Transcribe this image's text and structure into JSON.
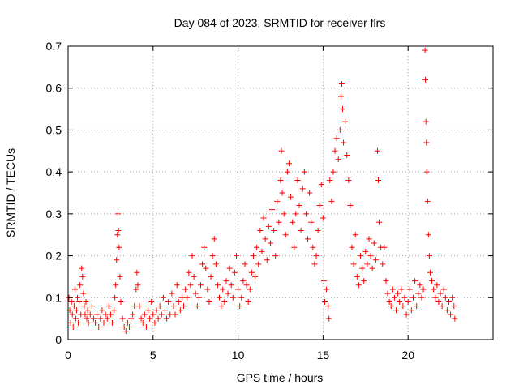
{
  "chart_data": {
    "type": "scatter",
    "title": "Day 084 of 2023, SRMTID for receiver flrs",
    "xlabel": "GPS time / hours",
    "ylabel": "SRMTID / TECUs",
    "xlim": [
      0,
      25
    ],
    "ylim": [
      0,
      0.7
    ],
    "x_ticks": [
      0,
      5,
      10,
      15,
      20
    ],
    "x_tick_labels": [
      "0",
      "5",
      "10",
      "15",
      "20"
    ],
    "y_ticks": [
      0,
      0.1,
      0.2,
      0.3,
      0.4,
      0.5,
      0.6,
      0.7
    ],
    "y_tick_labels": [
      "0",
      "0.1",
      "0.2",
      "0.3",
      "0.4",
      "0.5",
      "0.6",
      "0.7"
    ],
    "grid": true,
    "marker": "+",
    "series": [
      {
        "name": "flrs",
        "color": "#ff0000",
        "points": [
          [
            0.05,
            0.1
          ],
          [
            0.1,
            0.07
          ],
          [
            0.15,
            0.04
          ],
          [
            0.2,
            0.09
          ],
          [
            0.25,
            0.06
          ],
          [
            0.3,
            0.03
          ],
          [
            0.35,
            0.08
          ],
          [
            0.4,
            0.12
          ],
          [
            0.45,
            0.05
          ],
          [
            0.5,
            0.07
          ],
          [
            0.55,
            0.1
          ],
          [
            0.6,
            0.04
          ],
          [
            0.65,
            0.09
          ],
          [
            0.7,
            0.13
          ],
          [
            0.75,
            0.06
          ],
          [
            0.8,
            0.17
          ],
          [
            0.85,
            0.15
          ],
          [
            0.9,
            0.11
          ],
          [
            0.95,
            0.08
          ],
          [
            1.0,
            0.06
          ],
          [
            1.05,
            0.09
          ],
          [
            1.1,
            0.05
          ],
          [
            1.15,
            0.07
          ],
          [
            1.2,
            0.04
          ],
          [
            1.3,
            0.06
          ],
          [
            1.4,
            0.08
          ],
          [
            1.5,
            0.05
          ],
          [
            1.6,
            0.04
          ],
          [
            1.7,
            0.06
          ],
          [
            1.8,
            0.03
          ],
          [
            1.9,
            0.05
          ],
          [
            2.0,
            0.07
          ],
          [
            2.1,
            0.04
          ],
          [
            2.2,
            0.06
          ],
          [
            2.3,
            0.05
          ],
          [
            2.4,
            0.08
          ],
          [
            2.5,
            0.06
          ],
          [
            2.6,
            0.04
          ],
          [
            2.7,
            0.07
          ],
          [
            2.75,
            0.1
          ],
          [
            2.8,
            0.13
          ],
          [
            2.85,
            0.19
          ],
          [
            2.9,
            0.25
          ],
          [
            2.93,
            0.3
          ],
          [
            2.96,
            0.26
          ],
          [
            3.0,
            0.22
          ],
          [
            3.05,
            0.15
          ],
          [
            3.1,
            0.09
          ],
          [
            3.2,
            0.05
          ],
          [
            3.3,
            0.03
          ],
          [
            3.4,
            0.02
          ],
          [
            3.5,
            0.04
          ],
          [
            3.6,
            0.03
          ],
          [
            3.7,
            0.05
          ],
          [
            3.8,
            0.06
          ],
          [
            3.9,
            0.08
          ],
          [
            4.0,
            0.12
          ],
          [
            4.05,
            0.16
          ],
          [
            4.1,
            0.13
          ],
          [
            4.2,
            0.08
          ],
          [
            4.3,
            0.05
          ],
          [
            4.4,
            0.04
          ],
          [
            4.5,
            0.06
          ],
          [
            4.6,
            0.03
          ],
          [
            4.7,
            0.07
          ],
          [
            4.8,
            0.05
          ],
          [
            4.9,
            0.09
          ],
          [
            5.0,
            0.06
          ],
          [
            5.1,
            0.04
          ],
          [
            5.2,
            0.07
          ],
          [
            5.3,
            0.05
          ],
          [
            5.4,
            0.08
          ],
          [
            5.5,
            0.06
          ],
          [
            5.6,
            0.1
          ],
          [
            5.7,
            0.07
          ],
          [
            5.8,
            0.05
          ],
          [
            5.9,
            0.09
          ],
          [
            6.0,
            0.06
          ],
          [
            6.1,
            0.11
          ],
          [
            6.2,
            0.08
          ],
          [
            6.3,
            0.06
          ],
          [
            6.4,
            0.13
          ],
          [
            6.5,
            0.09
          ],
          [
            6.6,
            0.07
          ],
          [
            6.7,
            0.1
          ],
          [
            6.8,
            0.08
          ],
          [
            6.9,
            0.12
          ],
          [
            7.0,
            0.1
          ],
          [
            7.1,
            0.16
          ],
          [
            7.2,
            0.13
          ],
          [
            7.3,
            0.2
          ],
          [
            7.4,
            0.15
          ],
          [
            7.5,
            0.11
          ],
          [
            7.6,
            0.08
          ],
          [
            7.7,
            0.1
          ],
          [
            7.8,
            0.13
          ],
          [
            7.9,
            0.18
          ],
          [
            8.0,
            0.22
          ],
          [
            8.1,
            0.17
          ],
          [
            8.2,
            0.12
          ],
          [
            8.3,
            0.09
          ],
          [
            8.4,
            0.15
          ],
          [
            8.5,
            0.2
          ],
          [
            8.6,
            0.24
          ],
          [
            8.7,
            0.18
          ],
          [
            8.8,
            0.13
          ],
          [
            8.9,
            0.1
          ],
          [
            9.0,
            0.08
          ],
          [
            9.1,
            0.12
          ],
          [
            9.2,
            0.09
          ],
          [
            9.3,
            0.14
          ],
          [
            9.4,
            0.11
          ],
          [
            9.5,
            0.17
          ],
          [
            9.6,
            0.13
          ],
          [
            9.7,
            0.1
          ],
          [
            9.8,
            0.16
          ],
          [
            9.9,
            0.2
          ],
          [
            10.0,
            0.12
          ],
          [
            10.1,
            0.08
          ],
          [
            10.2,
            0.1
          ],
          [
            10.3,
            0.14
          ],
          [
            10.4,
            0.18
          ],
          [
            10.5,
            0.13
          ],
          [
            10.6,
            0.09
          ],
          [
            10.7,
            0.12
          ],
          [
            10.8,
            0.16
          ],
          [
            10.9,
            0.2
          ],
          [
            11.0,
            0.15
          ],
          [
            11.1,
            0.22
          ],
          [
            11.2,
            0.18
          ],
          [
            11.3,
            0.26
          ],
          [
            11.4,
            0.21
          ],
          [
            11.5,
            0.29
          ],
          [
            11.6,
            0.24
          ],
          [
            11.7,
            0.19
          ],
          [
            11.8,
            0.27
          ],
          [
            11.9,
            0.23
          ],
          [
            12.0,
            0.31
          ],
          [
            12.1,
            0.26
          ],
          [
            12.2,
            0.2
          ],
          [
            12.3,
            0.33
          ],
          [
            12.4,
            0.28
          ],
          [
            12.5,
            0.38
          ],
          [
            12.55,
            0.45
          ],
          [
            12.6,
            0.35
          ],
          [
            12.7,
            0.3
          ],
          [
            12.8,
            0.25
          ],
          [
            12.9,
            0.4
          ],
          [
            13.0,
            0.42
          ],
          [
            13.1,
            0.34
          ],
          [
            13.2,
            0.28
          ],
          [
            13.3,
            0.22
          ],
          [
            13.4,
            0.3
          ],
          [
            13.5,
            0.38
          ],
          [
            13.6,
            0.32
          ],
          [
            13.7,
            0.26
          ],
          [
            13.8,
            0.36
          ],
          [
            13.9,
            0.4
          ],
          [
            14.0,
            0.3
          ],
          [
            14.1,
            0.24
          ],
          [
            14.2,
            0.35
          ],
          [
            14.3,
            0.28
          ],
          [
            14.4,
            0.22
          ],
          [
            14.5,
            0.18
          ],
          [
            14.6,
            0.2
          ],
          [
            14.7,
            0.26
          ],
          [
            14.8,
            0.32
          ],
          [
            14.9,
            0.37
          ],
          [
            15.0,
            0.29
          ],
          [
            15.05,
            0.14
          ],
          [
            15.1,
            0.09
          ],
          [
            15.2,
            0.12
          ],
          [
            15.3,
            0.08
          ],
          [
            15.35,
            0.05
          ],
          [
            15.4,
            0.38
          ],
          [
            15.5,
            0.33
          ],
          [
            15.6,
            0.4
          ],
          [
            15.7,
            0.45
          ],
          [
            15.8,
            0.48
          ],
          [
            15.9,
            0.43
          ],
          [
            16.0,
            0.5
          ],
          [
            16.05,
            0.58
          ],
          [
            16.1,
            0.61
          ],
          [
            16.15,
            0.55
          ],
          [
            16.2,
            0.47
          ],
          [
            16.3,
            0.52
          ],
          [
            16.4,
            0.44
          ],
          [
            16.5,
            0.38
          ],
          [
            16.6,
            0.32
          ],
          [
            16.7,
            0.22
          ],
          [
            16.8,
            0.18
          ],
          [
            16.9,
            0.25
          ],
          [
            17.0,
            0.15
          ],
          [
            17.1,
            0.13
          ],
          [
            17.2,
            0.2
          ],
          [
            17.3,
            0.17
          ],
          [
            17.4,
            0.14
          ],
          [
            17.5,
            0.21
          ],
          [
            17.6,
            0.18
          ],
          [
            17.7,
            0.24
          ],
          [
            17.8,
            0.2
          ],
          [
            17.9,
            0.17
          ],
          [
            18.0,
            0.23
          ],
          [
            18.1,
            0.19
          ],
          [
            18.2,
            0.45
          ],
          [
            18.25,
            0.38
          ],
          [
            18.3,
            0.28
          ],
          [
            18.4,
            0.22
          ],
          [
            18.5,
            0.18
          ],
          [
            18.6,
            0.22
          ],
          [
            18.7,
            0.14
          ],
          [
            18.8,
            0.11
          ],
          [
            18.9,
            0.09
          ],
          [
            19.0,
            0.08
          ],
          [
            19.1,
            0.12
          ],
          [
            19.2,
            0.1
          ],
          [
            19.3,
            0.07
          ],
          [
            19.4,
            0.11
          ],
          [
            19.5,
            0.09
          ],
          [
            19.6,
            0.12
          ],
          [
            19.7,
            0.08
          ],
          [
            19.8,
            0.1
          ],
          [
            19.9,
            0.06
          ],
          [
            20.0,
            0.09
          ],
          [
            20.1,
            0.12
          ],
          [
            20.2,
            0.07
          ],
          [
            20.3,
            0.1
          ],
          [
            20.4,
            0.14
          ],
          [
            20.5,
            0.08
          ],
          [
            20.6,
            0.11
          ],
          [
            20.7,
            0.13
          ],
          [
            20.8,
            0.1
          ],
          [
            20.9,
            0.12
          ],
          [
            21.0,
            0.69
          ],
          [
            21.02,
            0.62
          ],
          [
            21.05,
            0.52
          ],
          [
            21.08,
            0.47
          ],
          [
            21.1,
            0.4
          ],
          [
            21.15,
            0.33
          ],
          [
            21.2,
            0.25
          ],
          [
            21.25,
            0.2
          ],
          [
            21.3,
            0.16
          ],
          [
            21.4,
            0.14
          ],
          [
            21.5,
            0.12
          ],
          [
            21.6,
            0.1
          ],
          [
            21.7,
            0.13
          ],
          [
            21.8,
            0.09
          ],
          [
            21.9,
            0.11
          ],
          [
            22.0,
            0.08
          ],
          [
            22.1,
            0.12
          ],
          [
            22.2,
            0.1
          ],
          [
            22.3,
            0.07
          ],
          [
            22.4,
            0.09
          ],
          [
            22.5,
            0.06
          ],
          [
            22.6,
            0.1
          ],
          [
            22.7,
            0.08
          ],
          [
            22.75,
            0.05
          ]
        ]
      }
    ]
  }
}
